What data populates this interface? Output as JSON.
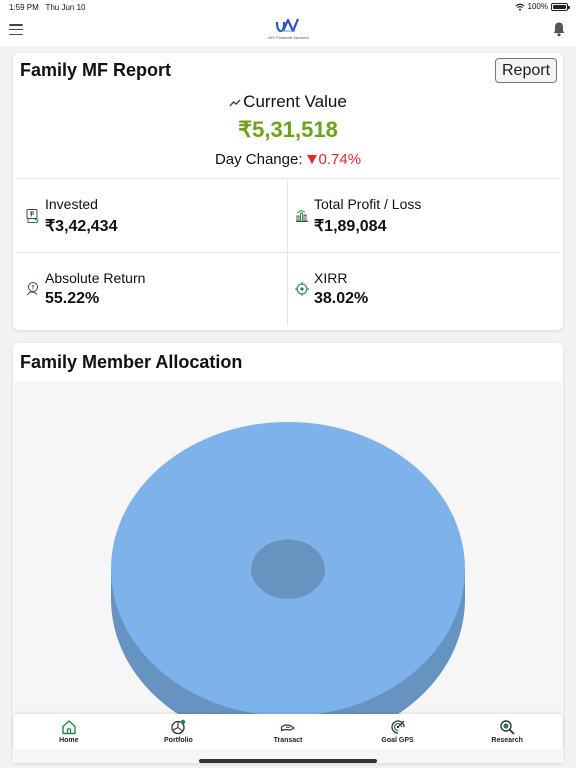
{
  "status_bar": {
    "time": "1:59 PM",
    "date": "Thu Jun 10",
    "battery": "100%",
    "battery_level": 1.0,
    "icons": [
      "wifi-icon",
      "battery-icon"
    ]
  },
  "header": {
    "logo_text": "JNV",
    "logo_subtext": "JNV Financial Services",
    "icons": [
      "menu-icon",
      "bell-icon"
    ]
  },
  "report": {
    "title": "Family MF Report",
    "report_button": "Report",
    "current_value_label": "Current Value",
    "current_value": "₹5,31,518",
    "day_change_label": "Day Change:",
    "day_change_value": "0.74%",
    "metrics": [
      {
        "label": "Invested",
        "value": "₹3,42,434",
        "icon": "money-bag-icon"
      },
      {
        "label": "Total Profit / Loss",
        "value": "₹1,89,084",
        "icon": "bar-chart-icon"
      },
      {
        "label": "Absolute Return",
        "value": "55.22%",
        "icon": "coin-hand-icon"
      },
      {
        "label": "XIRR",
        "value": "38.02%",
        "icon": "target-icon"
      }
    ]
  },
  "allocation": {
    "title": "Family Member Allocation"
  },
  "chart_data": {
    "type": "pie",
    "style": "3d-donut",
    "values": [
      100
    ],
    "colors": [
      "#7db3ea"
    ]
  },
  "colors": {
    "positive": "#6ba31a",
    "negative": "#e0292b",
    "accent_green": "#1f8a3b",
    "chart_blue": "#7db3ea"
  },
  "nav": {
    "items": [
      {
        "label": "Home",
        "icon": "home-icon"
      },
      {
        "label": "Portfolio",
        "icon": "portfolio-pie-icon"
      },
      {
        "label": "Transact",
        "icon": "transact-hand-icon"
      },
      {
        "label": "Goal GPS",
        "icon": "goal-gps-icon"
      },
      {
        "label": "Research",
        "icon": "research-search-icon"
      }
    ]
  }
}
